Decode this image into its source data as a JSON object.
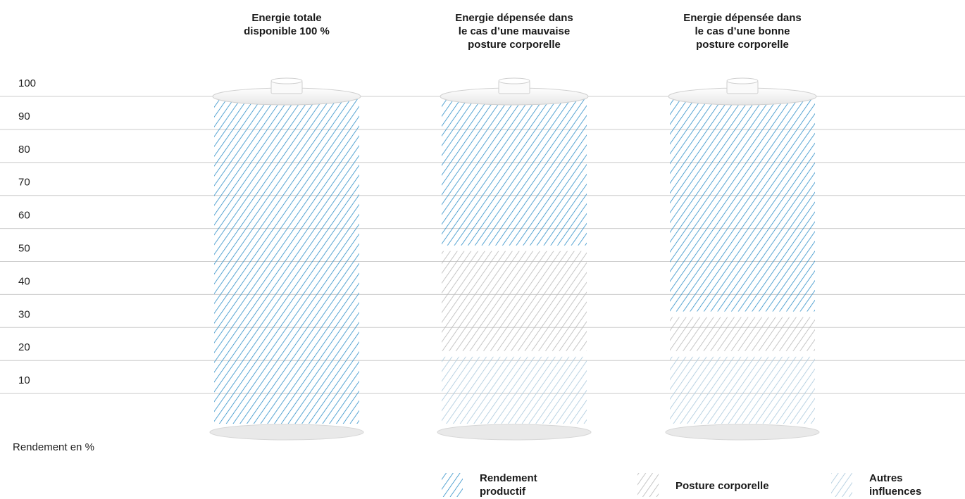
{
  "chart_data": {
    "type": "bar",
    "stacked": true,
    "categories": [
      [
        "Energie totale",
        "disponible 100 %"
      ],
      [
        "Energie dépensée dans",
        "le cas d’une mauvaise",
        "posture corporelle"
      ],
      [
        "Energie dépensée dans",
        "le cas d’une bonne",
        "posture corporelle"
      ]
    ],
    "series": [
      {
        "name": "Autres influences",
        "values": [
          0,
          22,
          22
        ]
      },
      {
        "name": "Posture corporelle",
        "values": [
          0,
          32,
          12
        ]
      },
      {
        "name": "Rendement productif",
        "values": [
          100,
          46,
          66
        ]
      }
    ],
    "ylabel": "Rendement en %",
    "y_ticks": [
      10,
      20,
      30,
      40,
      50,
      60,
      70,
      80,
      90,
      100
    ],
    "ylim": [
      0,
      100
    ],
    "grid": true,
    "legend_position": "bottom",
    "legend_order": [
      "Rendement productif",
      "Posture corporelle",
      "Autres influences"
    ],
    "colors": {
      "Rendement productif": "#2f8fc8",
      "Posture corporelle": "#b8b8b8",
      "Autres influences": "#a9c8dc",
      "grid": "#cccccc",
      "cap": "#f2f2f2"
    }
  }
}
